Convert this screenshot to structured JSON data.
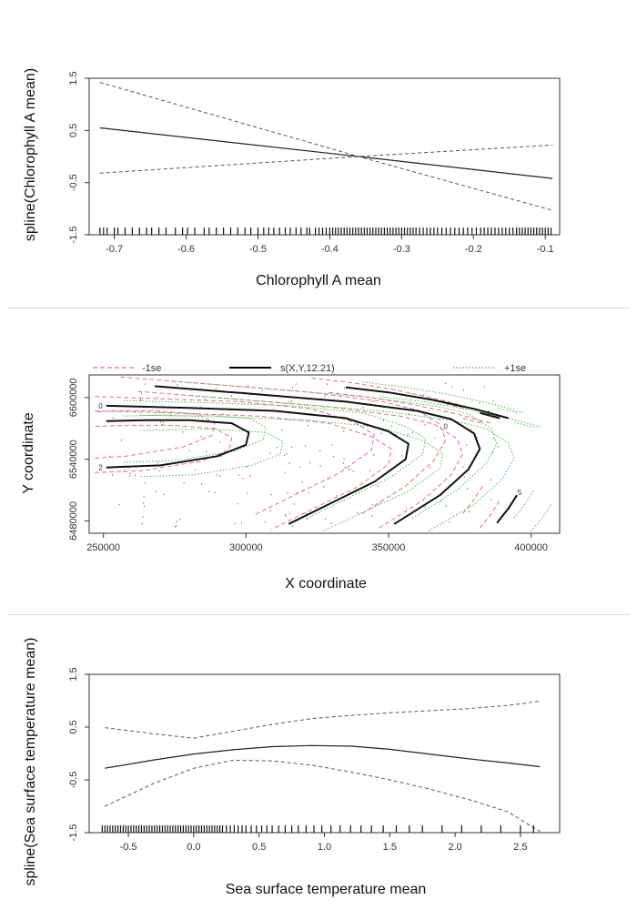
{
  "chart_data": [
    {
      "type": "line",
      "xlabel": "Chlorophyll A mean",
      "ylabel": "spline(Chlorophyll A mean)",
      "xlim": [
        -0.735,
        -0.08
      ],
      "ylim": [
        -1.5,
        1.5
      ],
      "x_ticks": [
        -0.7,
        -0.6,
        -0.5,
        -0.4,
        -0.3,
        -0.2,
        -0.1
      ],
      "x_tick_labels": [
        "-0.7",
        "-0.6",
        "-0.5",
        "-0.4",
        "-0.3",
        "-0.2",
        "-0.1"
      ],
      "y_ticks": [
        -1.5,
        -0.5,
        0.5,
        1.5
      ],
      "y_tick_labels": [
        "-1.5",
        "-0.5",
        "0.5",
        "1.5"
      ],
      "x": [
        -0.72,
        -0.36,
        -0.09
      ],
      "series": [
        {
          "values": [
            0.55,
            0.0,
            -0.42
          ],
          "style": "solid"
        },
        {
          "values": [
            1.42,
            0.0,
            -1.03
          ],
          "style": "dashed"
        },
        {
          "values": [
            -0.32,
            0.0,
            0.22
          ],
          "style": "dashed"
        }
      ],
      "rug": [
        -0.72,
        -0.715,
        -0.71,
        -0.7,
        -0.695,
        -0.685,
        -0.675,
        -0.665,
        -0.655,
        -0.648,
        -0.638,
        -0.628,
        -0.615,
        -0.605,
        -0.598,
        -0.588,
        -0.575,
        -0.568,
        -0.558,
        -0.548,
        -0.538,
        -0.528,
        -0.518,
        -0.51,
        -0.5,
        -0.492,
        -0.485,
        -0.478,
        -0.47,
        -0.462,
        -0.455,
        -0.447,
        -0.44,
        -0.432,
        -0.428,
        -0.42,
        -0.415,
        -0.41,
        -0.405,
        -0.4,
        -0.396,
        -0.392,
        -0.388,
        -0.384,
        -0.38,
        -0.376,
        -0.372,
        -0.368,
        -0.364,
        -0.36,
        -0.356,
        -0.352,
        -0.348,
        -0.344,
        -0.34,
        -0.336,
        -0.332,
        -0.328,
        -0.324,
        -0.32,
        -0.316,
        -0.312,
        -0.308,
        -0.304,
        -0.3,
        -0.296,
        -0.292,
        -0.288,
        -0.284,
        -0.28,
        -0.275,
        -0.27,
        -0.265,
        -0.26,
        -0.255,
        -0.25,
        -0.244,
        -0.238,
        -0.232,
        -0.226,
        -0.22,
        -0.214,
        -0.208,
        -0.202,
        -0.196,
        -0.19,
        -0.185,
        -0.18,
        -0.175,
        -0.17,
        -0.165,
        -0.16,
        -0.155,
        -0.15,
        -0.145,
        -0.14,
        -0.136,
        -0.132,
        -0.128,
        -0.124,
        -0.12,
        -0.116,
        -0.112,
        -0.108,
        -0.104,
        -0.1,
        -0.096,
        -0.092
      ]
    },
    {
      "type": "contour",
      "xlabel": "X coordinate",
      "ylabel": "Y coordinate",
      "xlim": [
        245000,
        410000
      ],
      "ylim": [
        6468000,
        6622000
      ],
      "x_ticks": [
        250000,
        300000,
        350000,
        400000
      ],
      "x_tick_labels": [
        "250000",
        "300000",
        "350000",
        "400000"
      ],
      "y_ticks": [
        6480000,
        6540000,
        6600000
      ],
      "y_tick_labels": [
        "6480000",
        "6540000",
        "6600000"
      ],
      "legend": {
        "position": "top",
        "entries": [
          {
            "label": "-1se",
            "color": "#e0708a",
            "style": "dashed"
          },
          {
            "label": "s(X,Y,12.21)",
            "color": "#000000",
            "style": "solid"
          },
          {
            "label": "+1se",
            "color": "#44bb44",
            "style": "dotted"
          }
        ]
      },
      "contours": [
        {
          "level": "2",
          "x": [
            251000,
            270000,
            290000,
            300000,
            301000,
            295000,
            280000,
            265000,
            251000
          ],
          "y": [
            6532000,
            6534000,
            6543000,
            6554000,
            6566000,
            6575000,
            6578000,
            6578000,
            6577000
          ]
        },
        {
          "level": "0",
          "x": [
            251000,
            280000,
            310000,
            335000,
            350000,
            357000,
            356000,
            345000,
            315000
          ],
          "y": [
            6592000,
            6590000,
            6587000,
            6580000,
            6567000,
            6555000,
            6540000,
            6518000,
            6477000
          ]
        },
        {
          "level": "",
          "x": [
            268000,
            300000,
            335000,
            360000,
            372000,
            380000,
            382000,
            378000,
            368000,
            352000
          ],
          "y": [
            6611000,
            6604000,
            6596000,
            6587000,
            6579000,
            6565000,
            6550000,
            6530000,
            6505000,
            6477000
          ]
        },
        {
          "level": "",
          "x": [
            335000,
            350000,
            365000,
            380000,
            392000
          ],
          "y": [
            6610000,
            6605000,
            6598000,
            6589000,
            6580000
          ]
        },
        {
          "level": "",
          "x": [
            382000,
            389000
          ],
          "y": [
            6585000,
            6580000
          ]
        },
        {
          "level": "",
          "x": [
            388000,
            392000,
            395000
          ],
          "y": [
            6478000,
            6492000,
            6505000
          ]
        }
      ],
      "contour_labels": [
        {
          "text": "0",
          "x": 249000,
          "y": 6592000
        },
        {
          "text": "2",
          "x": 249000,
          "y": 6532000
        },
        {
          "text": "4",
          "x": 385000,
          "y": 6585000
        },
        {
          "text": "5",
          "x": 396000,
          "y": 6508000
        },
        {
          "text": "0",
          "x": 370000,
          "y": 6572000
        }
      ]
    },
    {
      "type": "line",
      "xlabel": "Sea surface temperature mean",
      "ylabel": "spline(Sea surface temperature mean)",
      "xlim": [
        -0.8,
        2.8
      ],
      "ylim": [
        -1.5,
        1.5
      ],
      "x_ticks": [
        -0.5,
        0.0,
        0.5,
        1.0,
        1.5,
        2.0,
        2.5
      ],
      "x_tick_labels": [
        "-0.5",
        "0.0",
        "0.5",
        "1.0",
        "1.5",
        "2.0",
        "2.5"
      ],
      "y_ticks": [
        -1.5,
        -0.5,
        0.5,
        1.5
      ],
      "y_tick_labels": [
        "-1.5",
        "-0.5",
        "0.5",
        "1.5"
      ],
      "x": [
        -0.68,
        -0.3,
        0.0,
        0.3,
        0.6,
        0.9,
        1.2,
        1.5,
        1.8,
        2.1,
        2.4,
        2.65
      ],
      "series": [
        {
          "values": [
            -0.28,
            -0.12,
            -0.01,
            0.07,
            0.13,
            0.15,
            0.14,
            0.08,
            -0.01,
            -0.1,
            -0.18,
            -0.25
          ],
          "style": "solid"
        },
        {
          "values": [
            0.49,
            0.37,
            0.29,
            0.42,
            0.55,
            0.66,
            0.72,
            0.77,
            0.81,
            0.85,
            0.91,
            0.99
          ],
          "style": "dashed"
        },
        {
          "values": [
            -1.0,
            -0.56,
            -0.28,
            -0.13,
            -0.14,
            -0.22,
            -0.35,
            -0.5,
            -0.67,
            -0.87,
            -1.1,
            -1.48
          ],
          "style": "dashed"
        }
      ],
      "rug": [
        -0.7,
        -0.68,
        -0.66,
        -0.64,
        -0.62,
        -0.6,
        -0.58,
        -0.56,
        -0.54,
        -0.52,
        -0.5,
        -0.48,
        -0.46,
        -0.44,
        -0.42,
        -0.4,
        -0.38,
        -0.36,
        -0.34,
        -0.32,
        -0.3,
        -0.28,
        -0.26,
        -0.24,
        -0.22,
        -0.2,
        -0.18,
        -0.16,
        -0.14,
        -0.12,
        -0.1,
        -0.08,
        -0.06,
        -0.04,
        -0.02,
        0.0,
        0.02,
        0.04,
        0.06,
        0.08,
        0.1,
        0.12,
        0.14,
        0.16,
        0.18,
        0.2,
        0.22,
        0.25,
        0.28,
        0.31,
        0.34,
        0.37,
        0.4,
        0.44,
        0.48,
        0.52,
        0.56,
        0.6,
        0.65,
        0.7,
        0.75,
        0.8,
        0.86,
        0.92,
        0.98,
        1.05,
        1.12,
        1.2,
        1.28,
        1.36,
        1.45,
        1.55,
        1.65,
        1.75,
        1.9,
        2.05,
        2.2,
        2.35,
        2.5,
        2.6
      ]
    }
  ]
}
